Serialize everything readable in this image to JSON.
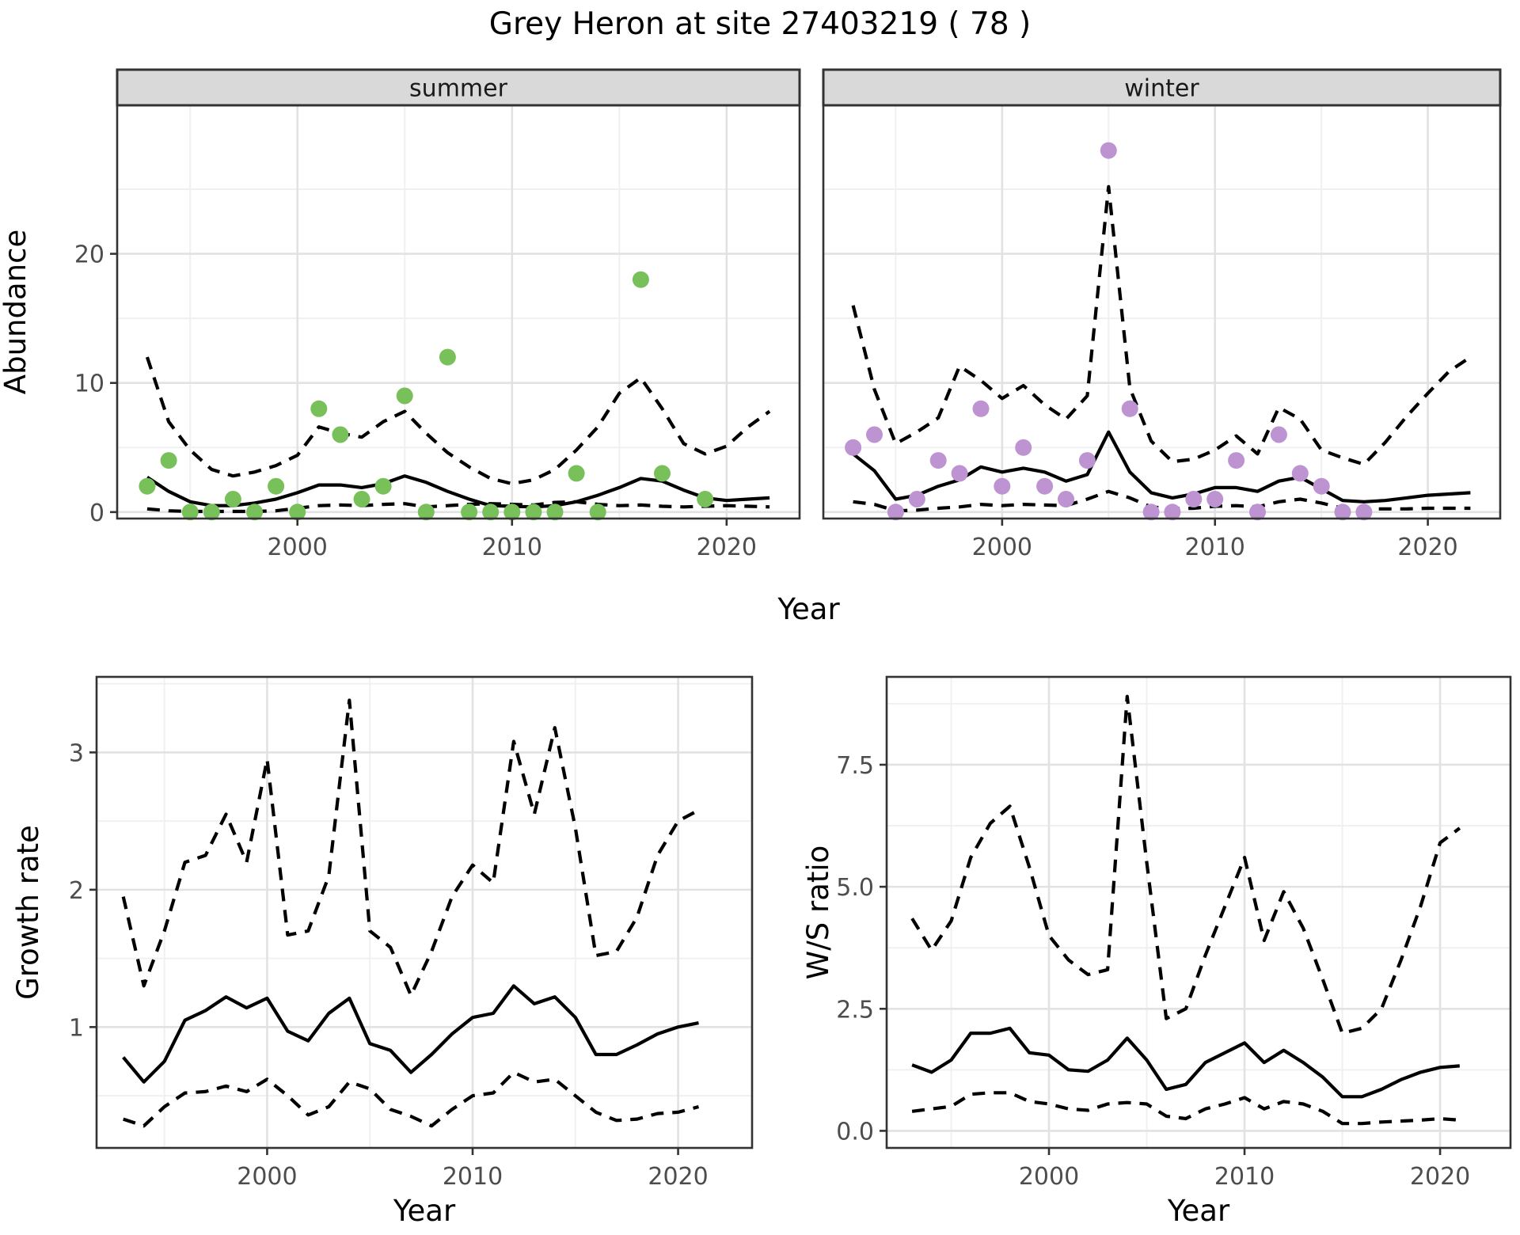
{
  "title": "Grey Heron at site 27403219 ( 78 )",
  "colors": {
    "summer_point": "#77C05A",
    "winter_point": "#BD93D2",
    "line": "#000000",
    "grid_major": "#E2E2E2",
    "grid_minor": "#F0F0F0",
    "strip_bg": "#D9D9D9",
    "strip_text": "#1A1A1A",
    "axis_text": "#4D4D4D",
    "border": "#333333",
    "background": "#FFFFFF"
  },
  "shared_labels": {
    "top_ylabel": "Abundance",
    "top_xlabel": "Year",
    "bottom_left_xlabel": "Year",
    "bottom_right_xlabel": "Year"
  },
  "chart_data": [
    {
      "id": "abundance-summer",
      "type": "scatter",
      "facet_label": "summer",
      "ylabel": "Abundance",
      "xlabel": "Year",
      "xlim": [
        1991.6,
        2023.4
      ],
      "ylim": [
        -0.5,
        31.5
      ],
      "xticks": [
        2000,
        2010,
        2020
      ],
      "xtick_labels": [
        "2000",
        "2010",
        "2020"
      ],
      "yticks": [
        0,
        10,
        20
      ],
      "ytick_labels": [
        "0",
        "10",
        "20"
      ],
      "xminor": [
        1995,
        2005,
        2015
      ],
      "yminor": [
        5,
        15,
        25
      ],
      "point_color_key": "summer_point",
      "points": {
        "x": [
          1993,
          1994,
          1995,
          1996,
          1997,
          1998,
          1999,
          2000,
          2001,
          2002,
          2003,
          2004,
          2005,
          2006,
          2007,
          2008,
          2009,
          2010,
          2011,
          2012,
          2013,
          2014,
          2016,
          2017,
          2019
        ],
        "y": [
          2,
          4,
          0,
          0,
          1,
          0,
          2,
          0,
          8,
          6,
          1,
          2,
          9,
          0,
          12,
          0,
          0,
          0,
          0,
          0,
          3,
          0,
          18,
          3,
          1
        ]
      },
      "series": [
        {
          "name": "fit",
          "style": "solid",
          "x": [
            1993,
            1994,
            1995,
            1996,
            1997,
            1998,
            1999,
            2000,
            2001,
            2002,
            2003,
            2004,
            2005,
            2006,
            2007,
            2008,
            2009,
            2010,
            2011,
            2012,
            2013,
            2014,
            2015,
            2016,
            2017,
            2018,
            2019,
            2020,
            2021,
            2022
          ],
          "y": [
            2.7,
            1.6,
            0.8,
            0.5,
            0.5,
            0.7,
            1.0,
            1.5,
            2.1,
            2.1,
            1.9,
            2.2,
            2.8,
            2.3,
            1.6,
            1.0,
            0.5,
            0.45,
            0.4,
            0.5,
            0.8,
            1.3,
            1.9,
            2.6,
            2.4,
            1.7,
            1.1,
            0.9,
            1.0,
            1.1
          ]
        },
        {
          "name": "upper_ci",
          "style": "dashed",
          "x": [
            1993,
            1994,
            1995,
            1996,
            1997,
            1998,
            1999,
            2000,
            2001,
            2002,
            2003,
            2004,
            2005,
            2006,
            2007,
            2008,
            2009,
            2010,
            2011,
            2012,
            2013,
            2014,
            2015,
            2016,
            2017,
            2018,
            2019,
            2020,
            2021,
            2022
          ],
          "y": [
            12,
            7,
            4.8,
            3.3,
            2.8,
            3.1,
            3.6,
            4.4,
            6.6,
            6.1,
            5.8,
            7.0,
            7.8,
            6.1,
            4.6,
            3.5,
            2.6,
            2.2,
            2.5,
            3.3,
            4.8,
            6.6,
            9.2,
            10.4,
            8.0,
            5.3,
            4.5,
            5.1,
            6.6,
            7.8
          ]
        },
        {
          "name": "lower_ci",
          "style": "dashed",
          "x": [
            1993,
            1994,
            1995,
            1996,
            1997,
            1998,
            1999,
            2000,
            2001,
            2002,
            2003,
            2004,
            2005,
            2006,
            2007,
            2008,
            2009,
            2010,
            2011,
            2012,
            2013,
            2014,
            2015,
            2016,
            2017,
            2018,
            2019,
            2020,
            2021,
            2022
          ],
          "y": [
            0.25,
            0.1,
            0.05,
            0.05,
            0.05,
            0.05,
            0.1,
            0.3,
            0.5,
            0.55,
            0.5,
            0.6,
            0.65,
            0.4,
            0.5,
            0.6,
            0.65,
            0.6,
            0.55,
            0.75,
            0.8,
            0.6,
            0.5,
            0.55,
            0.45,
            0.4,
            0.45,
            0.5,
            0.45,
            0.4
          ]
        }
      ]
    },
    {
      "id": "abundance-winter",
      "type": "scatter",
      "facet_label": "winter",
      "ylabel": "Abundance",
      "xlabel": "Year",
      "xlim": [
        1991.6,
        2023.4
      ],
      "ylim": [
        -0.5,
        31.5
      ],
      "xticks": [
        2000,
        2010,
        2020
      ],
      "xtick_labels": [
        "2000",
        "2010",
        "2020"
      ],
      "yticks": [],
      "ytick_labels": [],
      "xminor": [
        1995,
        2005,
        2015
      ],
      "yminor": [
        5,
        15,
        25
      ],
      "ygrid_major": [
        0,
        10,
        20
      ],
      "point_color_key": "winter_point",
      "points": {
        "x": [
          1993,
          1994,
          1995,
          1996,
          1997,
          1998,
          1999,
          2000,
          2001,
          2002,
          2003,
          2004,
          2005,
          2006,
          2007,
          2008,
          2009,
          2010,
          2011,
          2012,
          2013,
          2014,
          2015,
          2016,
          2017
        ],
        "y": [
          5,
          6,
          0,
          1,
          4,
          3,
          8,
          2,
          5,
          2,
          1,
          4,
          28,
          8,
          0,
          0,
          1,
          1,
          4,
          0,
          6,
          3,
          2,
          0,
          0
        ]
      },
      "series": [
        {
          "name": "fit",
          "style": "solid",
          "x": [
            1993,
            1994,
            1995,
            1996,
            1997,
            1998,
            1999,
            2000,
            2001,
            2002,
            2003,
            2004,
            2005,
            2006,
            2007,
            2008,
            2009,
            2010,
            2011,
            2012,
            2013,
            2014,
            2015,
            2016,
            2017,
            2018,
            2019,
            2020,
            2021,
            2022
          ],
          "y": [
            4.5,
            3.2,
            1.0,
            1.3,
            2.0,
            2.5,
            3.5,
            3.1,
            3.4,
            3.1,
            2.4,
            2.9,
            6.2,
            3.1,
            1.5,
            1.1,
            1.4,
            1.9,
            1.9,
            1.6,
            2.4,
            2.7,
            1.8,
            0.9,
            0.8,
            0.9,
            1.1,
            1.3,
            1.4,
            1.5
          ]
        },
        {
          "name": "upper_ci",
          "style": "dashed",
          "x": [
            1993,
            1994,
            1995,
            1996,
            1997,
            1998,
            1999,
            2000,
            2001,
            2002,
            2003,
            2004,
            2005,
            2006,
            2007,
            2008,
            2009,
            2010,
            2011,
            2012,
            2013,
            2014,
            2015,
            2016,
            2017,
            2018,
            2019,
            2020,
            2021,
            2022
          ],
          "y": [
            16,
            9.5,
            5.3,
            6.2,
            7.3,
            11.3,
            10.2,
            8.8,
            9.8,
            8.3,
            7.2,
            9.0,
            25.2,
            9.6,
            5.5,
            3.9,
            4.1,
            4.8,
            5.9,
            4.5,
            8.1,
            7.2,
            4.8,
            4.2,
            3.7,
            5.4,
            7.4,
            9.2,
            10.9,
            12.0
          ]
        },
        {
          "name": "lower_ci",
          "style": "dashed",
          "x": [
            1993,
            1994,
            1995,
            1996,
            1997,
            1998,
            1999,
            2000,
            2001,
            2002,
            2003,
            2004,
            2005,
            2006,
            2007,
            2008,
            2009,
            2010,
            2011,
            2012,
            2013,
            2014,
            2015,
            2016,
            2017,
            2018,
            2019,
            2020,
            2021,
            2022
          ],
          "y": [
            0.8,
            0.6,
            0.1,
            0.15,
            0.3,
            0.4,
            0.6,
            0.5,
            0.6,
            0.55,
            0.5,
            1.0,
            1.6,
            1.1,
            0.4,
            0.25,
            0.3,
            0.45,
            0.5,
            0.4,
            0.8,
            1.0,
            0.7,
            0.3,
            0.25,
            0.25,
            0.25,
            0.3,
            0.3,
            0.3
          ]
        }
      ]
    },
    {
      "id": "growth-rate",
      "type": "line",
      "facet_label": null,
      "ylabel": "Growth rate",
      "xlabel": "Year",
      "xlim": [
        1991.7,
        2023.6
      ],
      "ylim": [
        0.12,
        3.55
      ],
      "xticks": [
        2000,
        2010,
        2020
      ],
      "xtick_labels": [
        "2000",
        "2010",
        "2020"
      ],
      "yticks": [
        1,
        2,
        3
      ],
      "ytick_labels": [
        "1",
        "2",
        "3"
      ],
      "xminor": [
        1995,
        2005,
        2015
      ],
      "yminor": [
        0.5,
        1.5,
        2.5,
        3.5
      ],
      "series": [
        {
          "name": "fit",
          "style": "solid",
          "x": [
            1993,
            1994,
            1995,
            1996,
            1997,
            1998,
            1999,
            2000,
            2001,
            2002,
            2003,
            2004,
            2005,
            2006,
            2007,
            2008,
            2009,
            2010,
            2011,
            2012,
            2013,
            2014,
            2015,
            2016,
            2017,
            2018,
            2019,
            2020,
            2021
          ],
          "y": [
            0.78,
            0.6,
            0.75,
            1.05,
            1.12,
            1.22,
            1.14,
            1.21,
            0.97,
            0.9,
            1.1,
            1.21,
            0.88,
            0.83,
            0.67,
            0.8,
            0.95,
            1.07,
            1.1,
            1.3,
            1.17,
            1.22,
            1.07,
            0.8,
            0.8,
            0.87,
            0.95,
            1.0,
            1.03
          ]
        },
        {
          "name": "upper_ci",
          "style": "dashed",
          "x": [
            1993,
            1994,
            1995,
            1996,
            1997,
            1998,
            1999,
            2000,
            2001,
            2002,
            2003,
            2004,
            2005,
            2006,
            2007,
            2008,
            2009,
            2010,
            2011,
            2012,
            2013,
            2014,
            2015,
            2016,
            2017,
            2018,
            2019,
            2020,
            2021
          ],
          "y": [
            1.95,
            1.3,
            1.7,
            2.2,
            2.25,
            2.55,
            2.2,
            2.95,
            1.67,
            1.7,
            2.1,
            3.38,
            1.7,
            1.58,
            1.23,
            1.55,
            1.95,
            2.18,
            2.05,
            3.08,
            2.55,
            3.18,
            2.45,
            1.52,
            1.55,
            1.8,
            2.25,
            2.5,
            2.58
          ]
        },
        {
          "name": "lower_ci",
          "style": "dashed",
          "x": [
            1993,
            1994,
            1995,
            1996,
            1997,
            1998,
            1999,
            2000,
            2001,
            2002,
            2003,
            2004,
            2005,
            2006,
            2007,
            2008,
            2009,
            2010,
            2011,
            2012,
            2013,
            2014,
            2015,
            2016,
            2017,
            2018,
            2019,
            2020,
            2021
          ],
          "y": [
            0.33,
            0.28,
            0.42,
            0.52,
            0.53,
            0.57,
            0.53,
            0.62,
            0.5,
            0.36,
            0.42,
            0.6,
            0.55,
            0.4,
            0.35,
            0.28,
            0.4,
            0.5,
            0.52,
            0.67,
            0.6,
            0.62,
            0.5,
            0.38,
            0.32,
            0.33,
            0.37,
            0.38,
            0.42
          ]
        }
      ]
    },
    {
      "id": "ws-ratio",
      "type": "line",
      "facet_label": null,
      "ylabel": "W/S ratio",
      "xlabel": "Year",
      "xlim": [
        1991.7,
        2023.6
      ],
      "ylim": [
        -0.35,
        9.3
      ],
      "xticks": [
        2000,
        2010,
        2020
      ],
      "xtick_labels": [
        "2000",
        "2010",
        "2020"
      ],
      "yticks": [
        0,
        2.5,
        5,
        7.5
      ],
      "ytick_labels": [
        "0.0",
        "2.5",
        "5.0",
        "7.5"
      ],
      "xminor": [
        1995,
        2005,
        2015
      ],
      "yminor": [
        1.25,
        3.75,
        6.25,
        8.75
      ],
      "series": [
        {
          "name": "fit",
          "style": "solid",
          "x": [
            1993,
            1994,
            1995,
            1996,
            1997,
            1998,
            1999,
            2000,
            2001,
            2002,
            2003,
            2004,
            2005,
            2006,
            2007,
            2008,
            2009,
            2010,
            2011,
            2012,
            2013,
            2014,
            2015,
            2016,
            2017,
            2018,
            2019,
            2020,
            2021
          ],
          "y": [
            1.35,
            1.2,
            1.45,
            2.0,
            2.0,
            2.1,
            1.6,
            1.55,
            1.25,
            1.22,
            1.45,
            1.9,
            1.45,
            0.85,
            0.95,
            1.4,
            1.6,
            1.8,
            1.4,
            1.65,
            1.4,
            1.1,
            0.7,
            0.7,
            0.85,
            1.05,
            1.2,
            1.3,
            1.33
          ]
        },
        {
          "name": "upper_ci",
          "style": "dashed",
          "x": [
            1993,
            1994,
            1995,
            1996,
            1997,
            1998,
            1999,
            2000,
            2001,
            2002,
            2003,
            2004,
            2005,
            2006,
            2007,
            2008,
            2009,
            2010,
            2011,
            2012,
            2013,
            2014,
            2015,
            2016,
            2017,
            2018,
            2019,
            2020,
            2021
          ],
          "y": [
            4.35,
            3.7,
            4.3,
            5.6,
            6.3,
            6.65,
            5.4,
            4.0,
            3.5,
            3.2,
            3.3,
            8.9,
            5.5,
            2.3,
            2.5,
            3.6,
            4.6,
            5.6,
            3.9,
            4.9,
            4.15,
            3.1,
            2.0,
            2.1,
            2.5,
            3.5,
            4.6,
            5.9,
            6.2
          ]
        },
        {
          "name": "lower_ci",
          "style": "dashed",
          "x": [
            1993,
            1994,
            1995,
            1996,
            1997,
            1998,
            1999,
            2000,
            2001,
            2002,
            2003,
            2004,
            2005,
            2006,
            2007,
            2008,
            2009,
            2010,
            2011,
            2012,
            2013,
            2014,
            2015,
            2016,
            2017,
            2018,
            2019,
            2020,
            2021
          ],
          "y": [
            0.4,
            0.45,
            0.5,
            0.75,
            0.78,
            0.78,
            0.6,
            0.55,
            0.45,
            0.42,
            0.55,
            0.58,
            0.55,
            0.3,
            0.25,
            0.45,
            0.55,
            0.68,
            0.45,
            0.6,
            0.55,
            0.4,
            0.15,
            0.15,
            0.18,
            0.2,
            0.22,
            0.25,
            0.22
          ]
        }
      ]
    }
  ]
}
